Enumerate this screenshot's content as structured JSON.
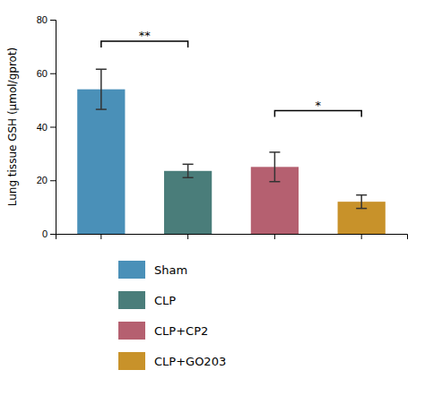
{
  "chart_data": {
    "type": "bar",
    "ylabel": "Lung tissue GSH (μmol/gprot)",
    "categories": [
      "Sham",
      "CLP",
      "CLP+CP2",
      "CLP+GO203"
    ],
    "values": [
      54.0,
      23.5,
      25.0,
      12.0
    ],
    "errors": [
      7.5,
      2.5,
      5.5,
      2.5
    ],
    "colors": [
      "#4a90b8",
      "#4a7d7a",
      "#b56070",
      "#c8922a"
    ],
    "ylim": [
      0,
      80
    ],
    "yticks": [
      0,
      20,
      40,
      60,
      80
    ],
    "annotations": [
      {
        "text": "**",
        "from": "Sham",
        "to": "CLP",
        "y": 72
      },
      {
        "text": "*",
        "from": "CLP+CP2",
        "to": "CLP+GO203",
        "y": 46
      }
    ],
    "grid": false,
    "tick_labels": "y",
    "legend": "bottom"
  }
}
